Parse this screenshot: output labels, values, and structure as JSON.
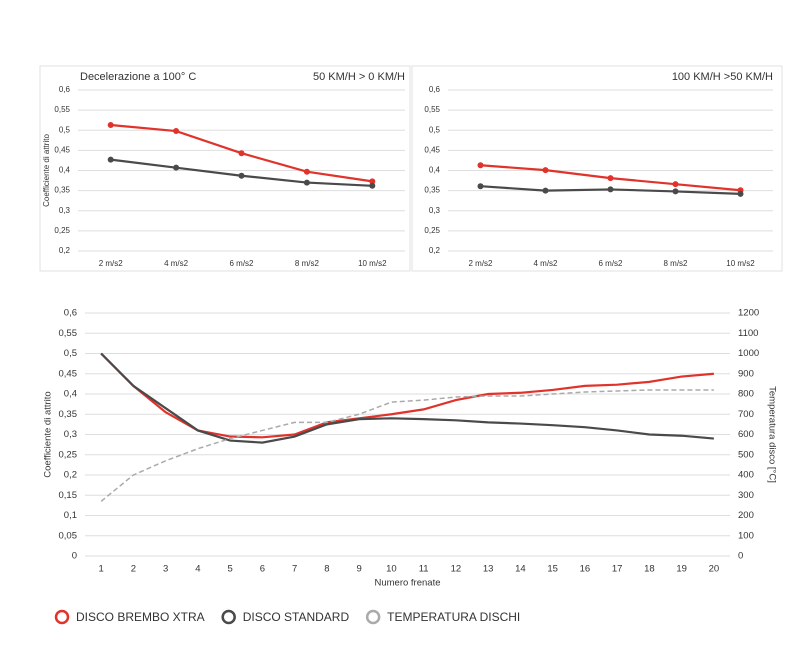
{
  "chart_data": [
    {
      "type": "line",
      "title": "Decelerazione a 100° C",
      "subtitle": "50 KM/H > 0 KM/H",
      "ylabel": "Coefficiente di attrito",
      "categories": [
        "2 m/s2",
        "4 m/s2",
        "6 m/s2",
        "8 m/s2",
        "10 m/s2"
      ],
      "ylim": [
        0.2,
        0.6
      ],
      "yticks": [
        {
          "value": 0.2,
          "label": "0,2"
        },
        {
          "value": 0.25,
          "label": "0,25"
        },
        {
          "value": 0.3,
          "label": "0,3"
        },
        {
          "value": 0.35,
          "label": "0,35"
        },
        {
          "value": 0.4,
          "label": "0,4"
        },
        {
          "value": 0.45,
          "label": "0,45"
        },
        {
          "value": 0.5,
          "label": "0,5"
        },
        {
          "value": 0.55,
          "label": "0,55"
        },
        {
          "value": 0.6,
          "label": "0,6"
        }
      ],
      "grid": true,
      "markers": true,
      "series": [
        {
          "color": "#e0332b",
          "values": [
            0.513,
            0.498,
            0.443,
            0.397,
            0.373
          ]
        },
        {
          "color": "#4a4a4a",
          "values": [
            0.427,
            0.407,
            0.387,
            0.37,
            0.362
          ]
        }
      ]
    },
    {
      "type": "line",
      "subtitle": "100 KM/H >50 KM/H",
      "categories": [
        "2 m/s2",
        "4 m/s2",
        "6 m/s2",
        "8 m/s2",
        "10 m/s2"
      ],
      "ylim": [
        0.2,
        0.6
      ],
      "yticks": [
        {
          "value": 0.2,
          "label": "0,2"
        },
        {
          "value": 0.25,
          "label": "0,25"
        },
        {
          "value": 0.3,
          "label": "0,3"
        },
        {
          "value": 0.35,
          "label": "0,35"
        },
        {
          "value": 0.4,
          "label": "0,4"
        },
        {
          "value": 0.45,
          "label": "0,45"
        },
        {
          "value": 0.5,
          "label": "0,5"
        },
        {
          "value": 0.55,
          "label": "0,55"
        },
        {
          "value": 0.6,
          "label": "0,6"
        }
      ],
      "grid": true,
      "markers": true,
      "series": [
        {
          "color": "#e0332b",
          "values": [
            0.413,
            0.401,
            0.381,
            0.366,
            0.351
          ]
        },
        {
          "color": "#4a4a4a",
          "values": [
            0.361,
            0.35,
            0.353,
            0.348,
            0.342
          ]
        }
      ]
    },
    {
      "type": "line",
      "ylabel": "Coefficiente di attrito",
      "xlabel": "Numero frenate",
      "y2label": "Temperatura disco [°C]",
      "x": [
        1,
        2,
        3,
        4,
        5,
        6,
        7,
        8,
        9,
        10,
        11,
        12,
        13,
        14,
        15,
        16,
        17,
        18,
        19,
        20
      ],
      "xlim": [
        0.5,
        20.5
      ],
      "ylim": [
        0,
        0.6
      ],
      "yticks": [
        0,
        {
          "value": 0.05,
          "label": "0,05"
        },
        {
          "value": 0.1,
          "label": "0,1"
        },
        {
          "value": 0.15,
          "label": "0,15"
        },
        {
          "value": 0.2,
          "label": "0,2"
        },
        {
          "value": 0.25,
          "label": "0,25"
        },
        {
          "value": 0.3,
          "label": "0,3"
        },
        {
          "value": 0.35,
          "label": "0,35"
        },
        {
          "value": 0.4,
          "label": "0,4"
        },
        {
          "value": 0.45,
          "label": "0,45"
        },
        {
          "value": 0.5,
          "label": "0,5"
        },
        {
          "value": 0.55,
          "label": "0,55"
        },
        {
          "value": 0.6,
          "label": "0,6"
        }
      ],
      "y2lim": [
        0,
        1200
      ],
      "y2ticks": [
        0,
        100,
        200,
        300,
        400,
        500,
        600,
        700,
        800,
        900,
        1000,
        1100,
        1200
      ],
      "grid": true,
      "markers": false,
      "legend": "bottom",
      "series": [
        {
          "name": "DISCO BREMBO XTRA",
          "color": "#e0332b",
          "values": [
            0.5,
            0.42,
            0.355,
            0.31,
            0.295,
            0.293,
            0.3,
            0.33,
            0.34,
            0.35,
            0.362,
            0.385,
            0.4,
            0.403,
            0.41,
            0.42,
            0.423,
            0.43,
            0.443,
            0.45
          ]
        },
        {
          "name": "DISCO STANDARD",
          "color": "#4a4a4a",
          "values": [
            0.5,
            0.42,
            0.365,
            0.31,
            0.285,
            0.28,
            0.295,
            0.325,
            0.338,
            0.34,
            0.338,
            0.335,
            0.33,
            0.327,
            0.323,
            0.318,
            0.31,
            0.3,
            0.297,
            0.29
          ]
        },
        {
          "name": "TEMPERATURA DISCHI",
          "color": "#aaaaaa",
          "dashed": true,
          "axis": "y2",
          "values": [
            270,
            400,
            470,
            530,
            580,
            620,
            660,
            660,
            700,
            760,
            770,
            785,
            790,
            790,
            800,
            810,
            815,
            820,
            820,
            820
          ]
        }
      ]
    }
  ]
}
